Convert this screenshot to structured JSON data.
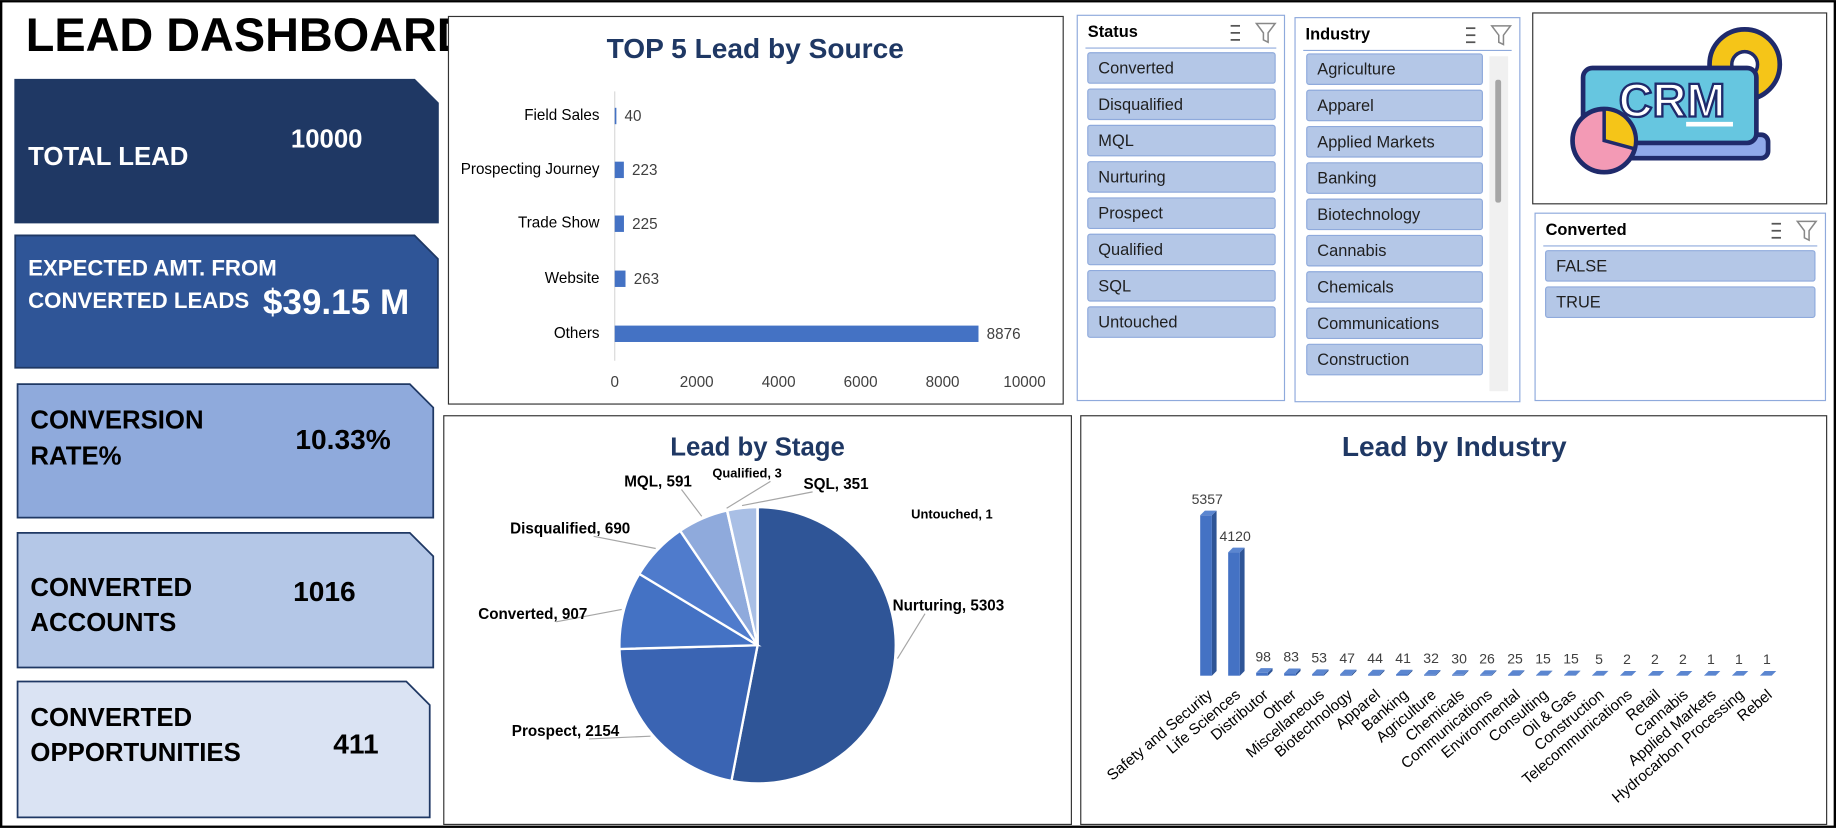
{
  "title": "LEAD DASHBOARD",
  "kpis": [
    {
      "label": [
        "TOTAL LEAD"
      ],
      "value": "10000"
    },
    {
      "label": [
        "EXPECTED AMT. FROM",
        "CONVERTED LEADS"
      ],
      "value": "$39.15 M"
    },
    {
      "label": [
        "CONVERSION",
        "RATE%"
      ],
      "value": "10.33%"
    },
    {
      "label": [
        "CONVERTED",
        "ACCOUNTS"
      ],
      "value": "1016"
    },
    {
      "label": [
        "CONVERTED",
        "OPPORTUNITIES"
      ],
      "value": "411"
    }
  ],
  "slicers": [
    {
      "title": "Status",
      "items": [
        "Converted",
        "Disqualified",
        "MQL",
        "Nurturing",
        "Prospect",
        "Qualified",
        "SQL",
        "Untouched"
      ]
    },
    {
      "title": "Industry",
      "items": [
        "Agriculture",
        "Apparel",
        "Applied Markets",
        "Banking",
        "Biotechnology",
        "Cannabis",
        "Chemicals",
        "Communications",
        "Construction"
      ]
    },
    {
      "title": "Converted",
      "items": [
        "FALSE",
        "TRUE"
      ]
    }
  ],
  "logo": {
    "text": "CRM"
  },
  "chart_data": [
    {
      "type": "bar",
      "orientation": "horizontal",
      "title": "TOP 5 Lead by Source",
      "categories": [
        "Field Sales",
        "Prospecting Journey",
        "Trade Show",
        "Website",
        "Others"
      ],
      "values": [
        40,
        223,
        225,
        263,
        8876
      ],
      "color": "#4472c4",
      "xlim": [
        0,
        10000
      ],
      "xticks": [
        0,
        2000,
        4000,
        6000,
        8000,
        10000
      ],
      "grid": false
    },
    {
      "type": "pie",
      "title": "Lead by Stage",
      "categories": [
        "Nurturing",
        "Prospect",
        "Converted",
        "Disqualified",
        "MQL",
        "Qualified",
        "SQL",
        "Untouched"
      ],
      "values": [
        5303,
        2154,
        907,
        690,
        591,
        3,
        351,
        1
      ],
      "value_labels": [
        "Nurturing, 5303",
        "Prospect, 2154",
        "Converted, 907",
        "Disqualified, 690",
        "MQL, 591",
        "Qualified, 3",
        "SQL, 351",
        "Untouched, 1"
      ],
      "colors": [
        "#2f5597",
        "#3a64b3",
        "#4472c4",
        "#4f7bcc",
        "#8faadc",
        "#9db5e0",
        "#a9bfe5",
        "#c5d3ee"
      ]
    },
    {
      "type": "column",
      "title": "Lead by Industry",
      "categories": [
        "Safety and Security",
        "Life Sciences",
        "Distributor",
        "Other",
        "Miscellaneous",
        "Biotechnology",
        "Apparel",
        "Banking",
        "Agriculture",
        "Chemicals",
        "Communications",
        "Environmental",
        "Consulting",
        "Oil & Gas",
        "Construction",
        "Telecommunications",
        "Retail",
        "Cannabis",
        "Applied Markets",
        "Hydrocarbon Processing",
        "Rebel"
      ],
      "values": [
        5357,
        4120,
        98,
        83,
        53,
        47,
        44,
        41,
        32,
        30,
        26,
        25,
        15,
        15,
        5,
        2,
        2,
        2,
        1,
        1,
        1
      ],
      "color": "#4472c4"
    }
  ]
}
